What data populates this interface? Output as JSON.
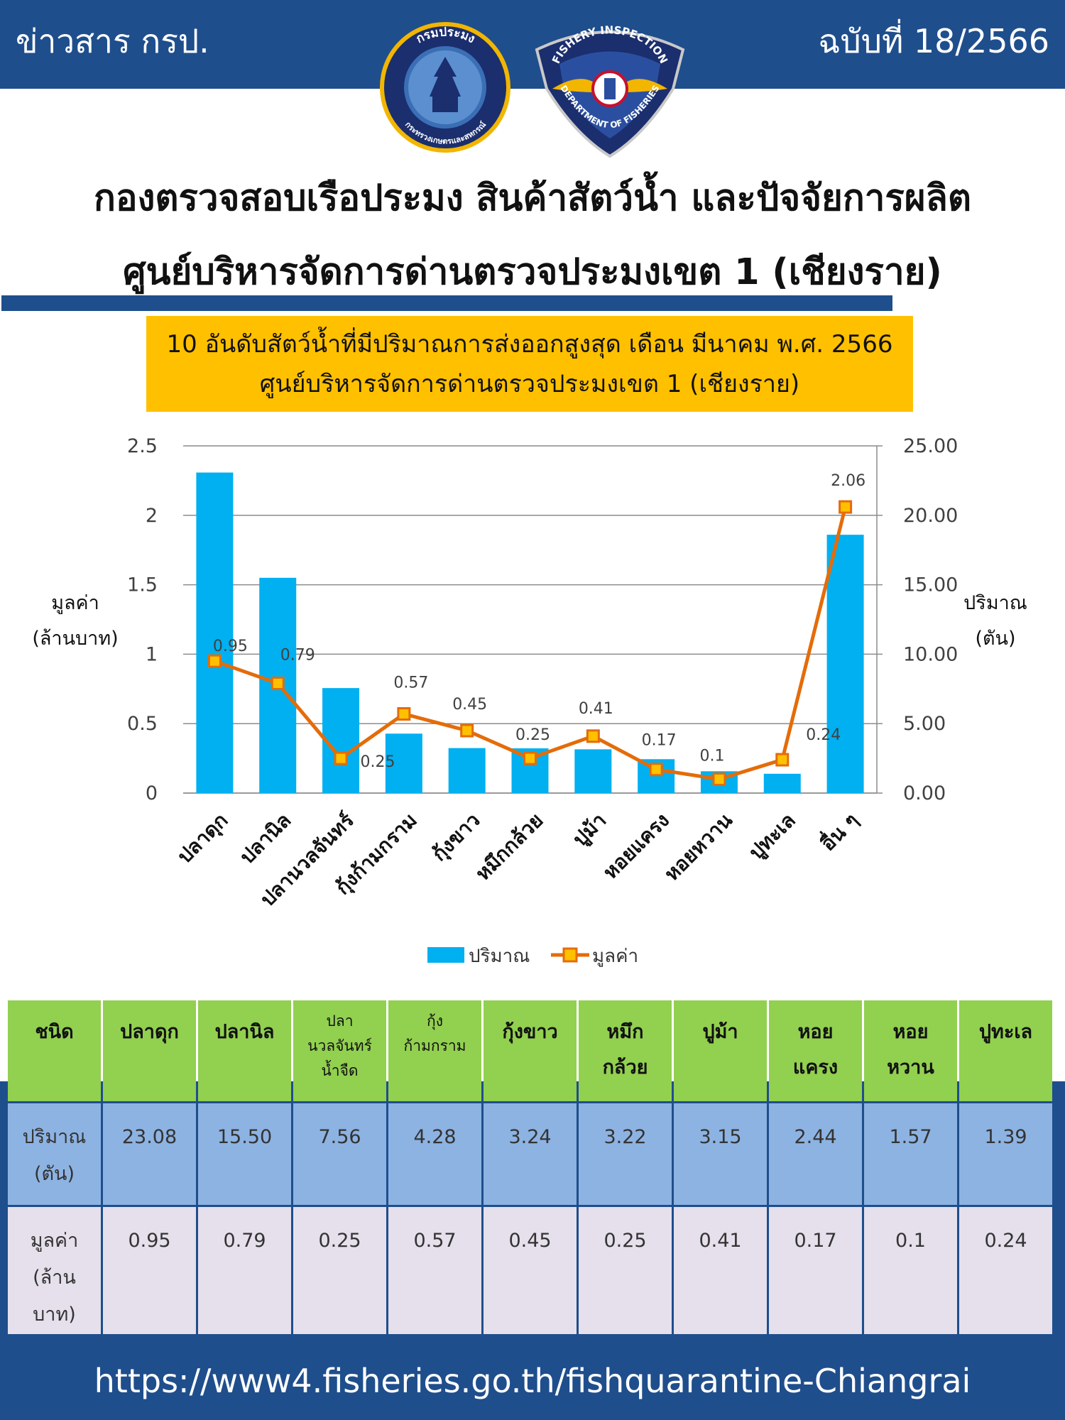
{
  "header": {
    "newsletter_label": "ข่าวสาร กรป.",
    "issue_label": "ฉบับที่ 18/2566",
    "logo1_text_top": "กรมประมง",
    "logo1_text_bottom": "กระทรวงเกษตรและสหกรณ์",
    "logo2_text_top": "FISHERY INSPECTION",
    "logo2_text_bottom": "DEPARTMENT OF FISHERIES"
  },
  "titles": {
    "line1": "กองตรวจสอบเรือประมง สินค้าสัตว์น้ำ และปัจจัยการผลิต",
    "line2": "ศูนย์บริหารจัดการด่านตรวจประมงเขต 1 (เชียงราย)"
  },
  "colors": {
    "brand_blue": "#1f4e8c",
    "bar": "#00b0f0",
    "line": "#e46c0a",
    "marker_fill": "#ffc000",
    "title_box": "#ffc000",
    "table_header": "#92d050",
    "table_qty": "#8db3e2",
    "table_val": "#e5e0ec"
  },
  "chart_data": {
    "type": "bar",
    "title": "10 อันดับสัตว์น้ำที่มีปริมาณการส่งออกสูงสุด เดือน มีนาคม พ.ศ. 2566",
    "subtitle": "ศูนย์บริหารจัดการด่านตรวจประมงเขต 1 (เชียงราย)",
    "categories": [
      "ปลาดุก",
      "ปลานิล",
      "ปลานวลจันทร์",
      "กุ้งก้ามกราม",
      "กุ้งขาว",
      "หมึกกล้วย",
      "ปูม้า",
      "หอยแครง",
      "หอยหวาน",
      "ปูทะเล",
      "อื่น ๆ"
    ],
    "series": [
      {
        "name": "ปริมาณ",
        "type": "bar",
        "axis": "right",
        "values": [
          23.08,
          15.5,
          7.56,
          4.28,
          3.24,
          3.22,
          3.15,
          2.44,
          1.57,
          1.39,
          18.6
        ]
      },
      {
        "name": "มูลค่า",
        "type": "line",
        "axis": "left",
        "values": [
          0.95,
          0.79,
          0.25,
          0.57,
          0.45,
          0.25,
          0.41,
          0.17,
          0.1,
          0.24,
          2.06
        ],
        "labels": [
          "0.95",
          "0.79",
          "0.25",
          "0.57",
          "0.45",
          "0.25",
          "0.41",
          "0.17",
          "0.1",
          "0.24",
          "2.06"
        ]
      }
    ],
    "ylabel_left": [
      "มูลค่า",
      "(ล้านบาท)"
    ],
    "ylabel_right": [
      "ปริมาณ",
      "(ตัน)"
    ],
    "ylim_left": [
      0,
      2.5
    ],
    "yticks_left": [
      "0",
      "0.5",
      "1",
      "1.5",
      "2",
      "2.5"
    ],
    "ylim_right": [
      0,
      25
    ],
    "yticks_right": [
      "0.00",
      "5.00",
      "10.00",
      "15.00",
      "20.00",
      "25.00"
    ],
    "grid": true,
    "legend_position": "bottom"
  },
  "table": {
    "header_label": "ชนิด",
    "headers": [
      [
        "ปลาดุก"
      ],
      [
        "ปลานิล"
      ],
      [
        "ปลา",
        "นวลจันทร์",
        "น้ำจืด"
      ],
      [
        "กุ้ง",
        "ก้ามกราม"
      ],
      [
        "กุ้งขาว"
      ],
      [
        "หมึก",
        "กล้วย"
      ],
      [
        "ปูม้า"
      ],
      [
        "หอย",
        "แครง"
      ],
      [
        "หอย",
        "หวาน"
      ],
      [
        "ปูทะเล"
      ]
    ],
    "qty_label": [
      "ปริมาณ",
      "(ตัน)"
    ],
    "qty": [
      "23.08",
      "15.50",
      "7.56",
      "4.28",
      "3.24",
      "3.22",
      "3.15",
      "2.44",
      "1.57",
      "1.39"
    ],
    "val_label": [
      "มูลค่า",
      "(ล้าน",
      "บาท)"
    ],
    "val": [
      "0.95",
      "0.79",
      "0.25",
      "0.57",
      "0.45",
      "0.25",
      "0.41",
      "0.17",
      "0.1",
      "0.24"
    ]
  },
  "footer": {
    "url": "https://www4.fisheries.go.th/fishquarantine-Chiangrai"
  }
}
